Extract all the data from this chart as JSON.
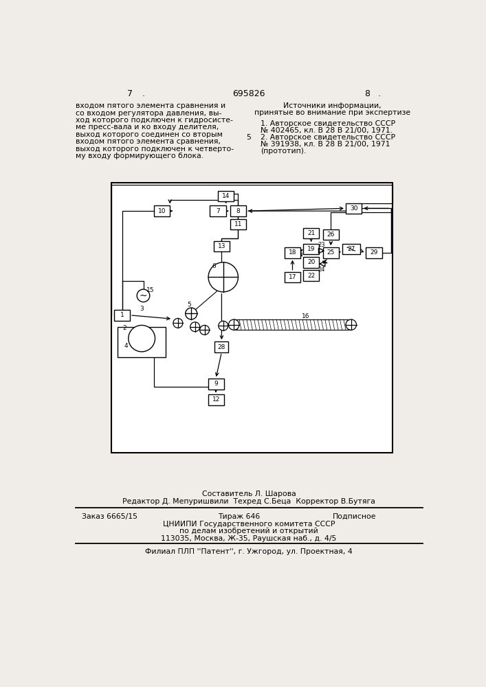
{
  "page_number_left": "7",
  "page_number_center": "695826",
  "page_number_right": "8",
  "left_column_text": [
    "входом пятого элемента сравнения и",
    "со входом регулятора давления, вы-",
    "ход которого подключен к гидросисте-",
    "ме пресс-вала и ко входу делителя,",
    "выход которого соединен со вторым",
    "входом пятого элемента сравнения,",
    "выход которого подключен к четверто-",
    "му входу формирующего блока."
  ],
  "right_column_title": "Источники информации,",
  "right_column_subtitle": "принятые во внимание при экспертизе",
  "right_column_refs": [
    "1. Авторское свидетельство СССР",
    "№ 402465, кл. В 28 В 21/00, 1971.",
    "2. Авторское свидетельство СССР",
    "№ 391938, кл. В 28 В 21/00, 1971",
    "(прототип)."
  ],
  "ref2_marker": "5",
  "footer_line1": "Составитель Л. Шарова",
  "footer_line2": "Редактор Д. Мепуришвили  Техред С.Беца  Корректор В.Бутяга",
  "footer_order": "Заказ 6665/15",
  "footer_tirazh": "Тираж 646",
  "footer_podpisnoe": "Подписное",
  "footer_cniip1": "ЦНИИПИ Государственного комитета СССР",
  "footer_cniip2": "по делам изобретений и открытий",
  "footer_cniip3": "113035, Москва, Ж-35, Раушская наб., д. 4/5",
  "footer_filial": "Филиал ПЛП ''Патент'', г. Ужгород, ул. Проектная, 4",
  "bg_color": "#f0ede8"
}
